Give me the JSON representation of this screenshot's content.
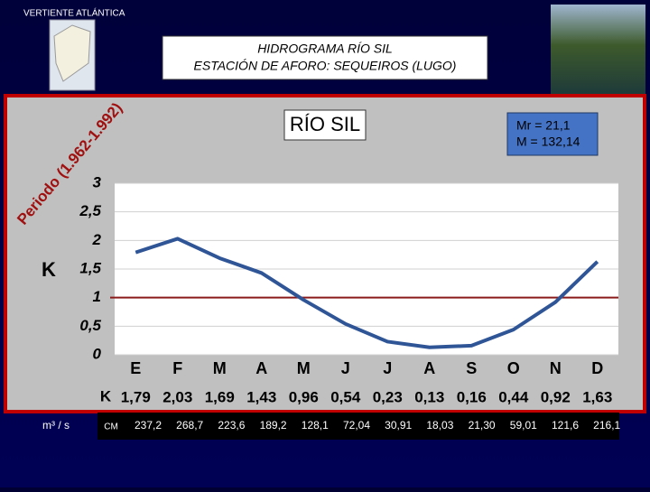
{
  "header": {
    "region": "VERTIENTE ATLÁNTICA",
    "title": "HIDROGRAMA RÍO SIL",
    "subtitle": "ESTACIÓN DE AFORO: SEQUEIROS (LUGO)"
  },
  "chart_data": {
    "type": "line",
    "title": "RÍO SIL",
    "period": "Periodo (1.962-1.992)",
    "annotations": [
      "Mr = 21,1",
      "M = 132,14"
    ],
    "y_label": "K",
    "row_label": "K",
    "categories": [
      "E",
      "F",
      "M",
      "A",
      "M",
      "J",
      "J",
      "A",
      "S",
      "O",
      "N",
      "D"
    ],
    "values": [
      1.79,
      2.03,
      1.69,
      1.43,
      0.96,
      0.54,
      0.23,
      0.13,
      0.16,
      0.44,
      0.92,
      1.63
    ],
    "value_labels": [
      "1,79",
      "2,03",
      "1,69",
      "1,43",
      "0,96",
      "0,54",
      "0,23",
      "0,13",
      "0,16",
      "0,44",
      "0,92",
      "1,63"
    ],
    "color": "#2f5597",
    "reference_line": 1,
    "reference_color": "#8b1a1a",
    "ylim": [
      0,
      3
    ],
    "yticks": [
      0,
      {
        "value": 0.5,
        "label": "0,5"
      },
      1,
      {
        "value": 1.5,
        "label": "1,5"
      },
      2,
      {
        "value": 2.5,
        "label": "2,5"
      },
      3
    ],
    "grid": true
  },
  "flow": {
    "label": "m³ / s",
    "row_label": "CM",
    "values": [
      "237,2",
      "268,7",
      "223,6",
      "189,2",
      "128,1",
      "72,04",
      "30,91",
      "18,03",
      "21,30",
      "59,01",
      "121,6",
      "216,1"
    ]
  }
}
